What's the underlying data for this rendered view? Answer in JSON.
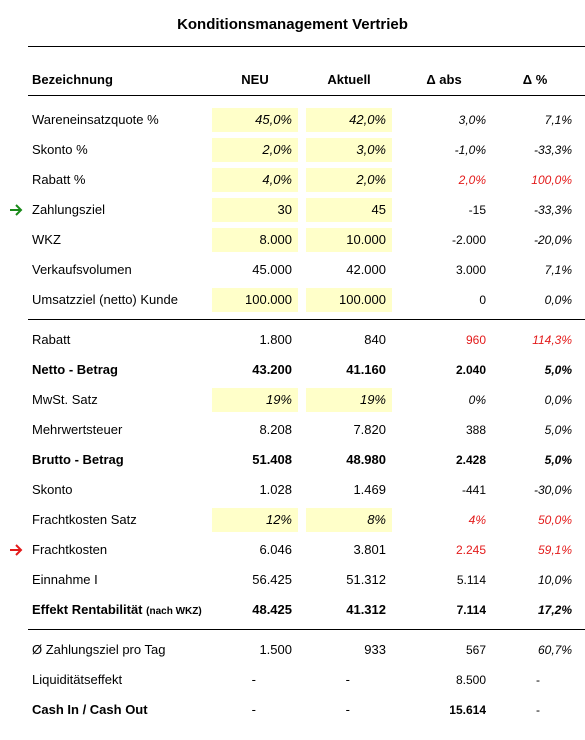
{
  "title": "Konditionsmanagement Vertrieb",
  "colors": {
    "highlight": "#ffffc9",
    "negative_red": "#e31b1b",
    "arrow_green": "#1a8a1a",
    "arrow_red": "#e31b1b"
  },
  "header": {
    "label": "Bezeichnung",
    "neu": "NEU",
    "aktuell": "Aktuell",
    "delta_abs": "Δ abs",
    "delta_pct": "Δ %"
  },
  "rows": [
    {
      "label": "Wareneinsatzquote %",
      "neu": "45,0%",
      "aktuell": "42,0%",
      "abs": "3,0%",
      "pct": "7,1%"
    },
    {
      "label": "Skonto %",
      "neu": "2,0%",
      "aktuell": "3,0%",
      "abs": "-1,0%",
      "pct": "-33,3%"
    },
    {
      "label": "Rabatt %",
      "neu": "4,0%",
      "aktuell": "2,0%",
      "abs": "2,0%",
      "pct": "100,0%"
    },
    {
      "label": "Zahlungsziel",
      "neu": "30",
      "aktuell": "45",
      "abs": "-15",
      "pct": "-33,3%",
      "marker": "green-arrow-icon"
    },
    {
      "label": "WKZ",
      "neu": "8.000",
      "aktuell": "10.000",
      "abs": "-2.000",
      "pct": "-20,0%"
    },
    {
      "label": "Verkaufsvolumen",
      "neu": "45.000",
      "aktuell": "42.000",
      "abs": "3.000",
      "pct": "7,1%"
    },
    {
      "label": "Umsatzziel (netto) Kunde",
      "neu": "100.000",
      "aktuell": "100.000",
      "abs": "0",
      "pct": "0,0%"
    },
    {
      "label": "Rabatt",
      "neu": "1.800",
      "aktuell": "840",
      "abs": "960",
      "pct": "114,3%"
    },
    {
      "label": "Netto - Betrag",
      "neu": "43.200",
      "aktuell": "41.160",
      "abs": "2.040",
      "pct": "5,0%"
    },
    {
      "label": "MwSt. Satz",
      "neu": "19%",
      "aktuell": "19%",
      "abs": "0%",
      "pct": "0,0%"
    },
    {
      "label": "Mehrwertsteuer",
      "neu": "8.208",
      "aktuell": "7.820",
      "abs": "388",
      "pct": "5,0%"
    },
    {
      "label": "Brutto - Betrag",
      "neu": "51.408",
      "aktuell": "48.980",
      "abs": "2.428",
      "pct": "5,0%"
    },
    {
      "label": "Skonto",
      "neu": "1.028",
      "aktuell": "1.469",
      "abs": "-441",
      "pct": "-30,0%"
    },
    {
      "label": "Frachtkosten Satz",
      "neu": "12%",
      "aktuell": "8%",
      "abs": "4%",
      "pct": "50,0%"
    },
    {
      "label": "Frachtkosten",
      "neu": "6.046",
      "aktuell": "3.801",
      "abs": "2.245",
      "pct": "59,1%",
      "marker": "red-arrow-icon"
    },
    {
      "label": "Einnahme I",
      "neu": "56.425",
      "aktuell": "51.312",
      "abs": "5.114",
      "pct": "10,0%"
    },
    {
      "label": "Effekt Rentabilität",
      "label_suffix": "(nach WKZ)",
      "neu": "48.425",
      "aktuell": "41.312",
      "abs": "7.114",
      "pct": "17,2%"
    },
    {
      "label": "Ø Zahlungsziel pro Tag",
      "neu": "1.500",
      "aktuell": "933",
      "abs": "567",
      "pct": "60,7%"
    },
    {
      "label": "Liquiditätseffekt",
      "neu": "-",
      "aktuell": "-",
      "abs": "8.500",
      "pct": "-"
    },
    {
      "label": "Cash In / Cash Out",
      "neu": "-",
      "aktuell": "-",
      "abs": "15.614",
      "pct": "-"
    }
  ]
}
